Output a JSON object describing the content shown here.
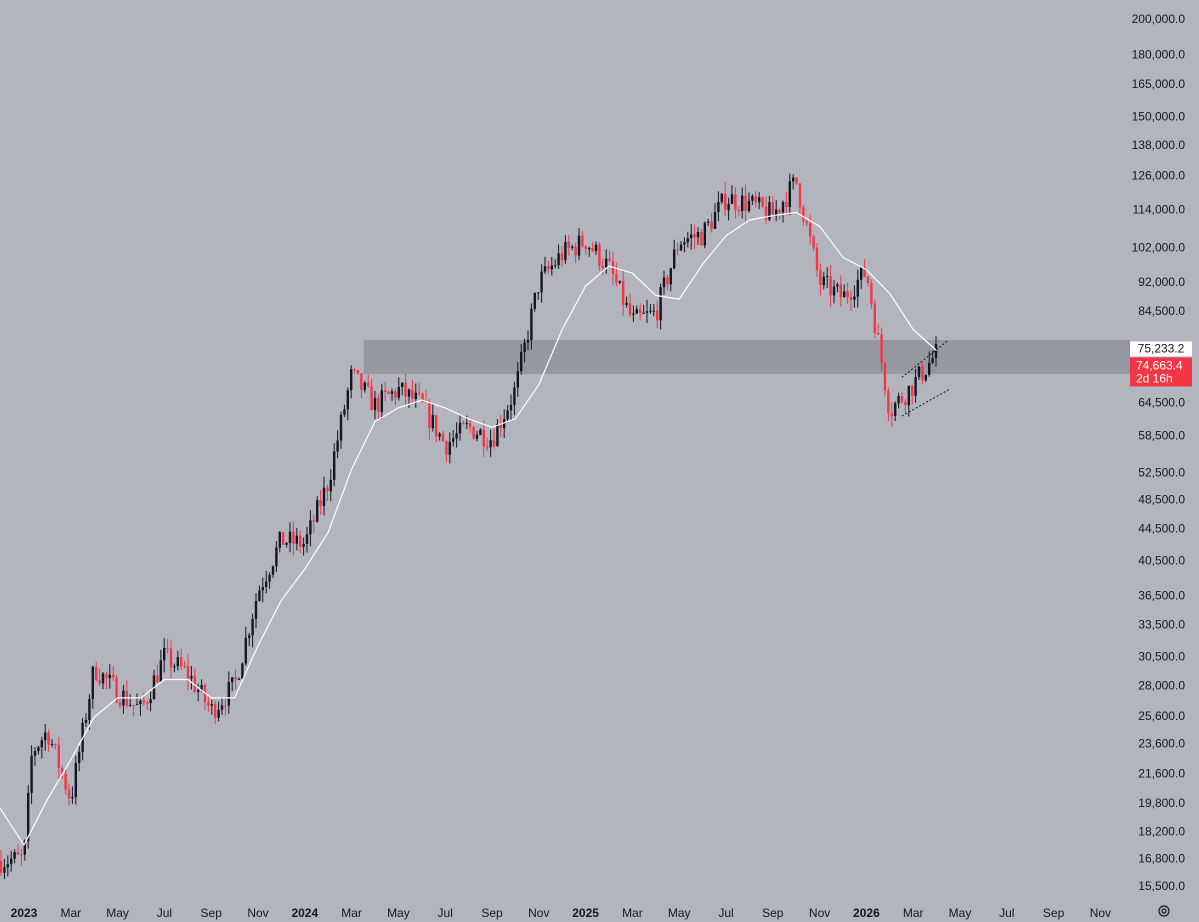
{
  "chart_data": {
    "type": "candlestick",
    "scale": "log",
    "grid": false,
    "y_ticks": [
      200000,
      180000,
      165000,
      150000,
      138000,
      126000,
      114000,
      102000,
      92000,
      84500,
      64500,
      58500,
      52500,
      48500,
      44500,
      40500,
      36500,
      33500,
      30500,
      28000,
      25600,
      23600,
      21600,
      19800,
      18200,
      16800,
      15500
    ],
    "y_tick_labels": [
      "200,000.0",
      "180,000.0",
      "165,000.0",
      "150,000.0",
      "138,000.0",
      "126,000.0",
      "114,000.0",
      "102,000.0",
      "92,000.0",
      "84,500.0",
      "64,500.0",
      "58,500.0",
      "52,500.0",
      "48,500.0",
      "44,500.0",
      "40,500.0",
      "36,500.0",
      "33,500.0",
      "30,500.0",
      "28,000.0",
      "25,600.0",
      "23,600.0",
      "21,600.0",
      "19,800.0",
      "18,200.0",
      "16,800.0",
      "15,500.0"
    ],
    "x_tick_labels": [
      {
        "label": "2023",
        "bold": true
      },
      {
        "label": "Mar",
        "bold": false
      },
      {
        "label": "May",
        "bold": false
      },
      {
        "label": "Jul",
        "bold": false
      },
      {
        "label": "Sep",
        "bold": false
      },
      {
        "label": "Nov",
        "bold": false
      },
      {
        "label": "2024",
        "bold": true
      },
      {
        "label": "Mar",
        "bold": false
      },
      {
        "label": "May",
        "bold": false
      },
      {
        "label": "Jul",
        "bold": false
      },
      {
        "label": "Sep",
        "bold": false
      },
      {
        "label": "Nov",
        "bold": false
      },
      {
        "label": "2025",
        "bold": true
      },
      {
        "label": "Mar",
        "bold": false
      },
      {
        "label": "May",
        "bold": false
      },
      {
        "label": "Jul",
        "bold": false
      },
      {
        "label": "Sep",
        "bold": false
      },
      {
        "label": "Nov",
        "bold": false
      },
      {
        "label": "2026",
        "bold": true
      },
      {
        "label": "Mar",
        "bold": false
      },
      {
        "label": "May",
        "bold": false
      },
      {
        "label": "Jul",
        "bold": false
      },
      {
        "label": "Sep",
        "bold": false
      },
      {
        "label": "Nov",
        "bold": false
      }
    ],
    "x_start": "2023-01",
    "x_end": "2026-12",
    "price_path": [
      [
        "2022-12",
        16700
      ],
      [
        "2023-01",
        16800
      ],
      [
        "2023-01",
        23000
      ],
      [
        "2023-02",
        24500
      ],
      [
        "2023-03",
        20000
      ],
      [
        "2023-04",
        29500
      ],
      [
        "2023-05",
        27500
      ],
      [
        "2023-06",
        26000
      ],
      [
        "2023-07",
        30500
      ],
      [
        "2023-08",
        29000
      ],
      [
        "2023-09",
        26000
      ],
      [
        "2023-10",
        28000
      ],
      [
        "2023-11",
        37000
      ],
      [
        "2023-12",
        43000
      ],
      [
        "2024-01",
        42500
      ],
      [
        "2024-02",
        51000
      ],
      [
        "2024-03",
        70000
      ],
      [
        "2024-04",
        64000
      ],
      [
        "2024-05",
        67000
      ],
      [
        "2024-06",
        64000
      ],
      [
        "2024-07",
        57000
      ],
      [
        "2024-08",
        60000
      ],
      [
        "2024-09",
        58000
      ],
      [
        "2024-10",
        67000
      ],
      [
        "2024-11",
        92000
      ],
      [
        "2024-12",
        100000
      ],
      [
        "2025-01",
        104000
      ],
      [
        "2025-02",
        96000
      ],
      [
        "2025-03",
        82000
      ],
      [
        "2025-04",
        84000
      ],
      [
        "2025-05",
        104000
      ],
      [
        "2025-06",
        106000
      ],
      [
        "2025-07",
        118000
      ],
      [
        "2025-08",
        116000
      ],
      [
        "2025-09",
        112000
      ],
      [
        "2025-10",
        124000
      ],
      [
        "2025-11",
        92000
      ],
      [
        "2025-12",
        88000
      ],
      [
        "2026-01",
        95000
      ],
      [
        "2026-02",
        63000
      ],
      [
        "2026-03",
        68000
      ],
      [
        "2026-04",
        74663
      ]
    ],
    "ma_path": [
      [
        "2022-12",
        19500
      ],
      [
        "2023-01",
        17500
      ],
      [
        "2023-02",
        20000
      ],
      [
        "2023-03",
        22500
      ],
      [
        "2023-04",
        25500
      ],
      [
        "2023-05",
        27000
      ],
      [
        "2023-06",
        27000
      ],
      [
        "2023-07",
        28500
      ],
      [
        "2023-08",
        28500
      ],
      [
        "2023-09",
        27000
      ],
      [
        "2023-10",
        27000
      ],
      [
        "2023-11",
        31500
      ],
      [
        "2023-12",
        36000
      ],
      [
        "2024-01",
        39500
      ],
      [
        "2024-02",
        44000
      ],
      [
        "2024-03",
        53000
      ],
      [
        "2024-04",
        61000
      ],
      [
        "2024-05",
        63500
      ],
      [
        "2024-06",
        65000
      ],
      [
        "2024-07",
        63500
      ],
      [
        "2024-08",
        61500
      ],
      [
        "2024-09",
        60000
      ],
      [
        "2024-10",
        61500
      ],
      [
        "2024-11",
        68000
      ],
      [
        "2024-12",
        80000
      ],
      [
        "2025-01",
        91000
      ],
      [
        "2025-02",
        96500
      ],
      [
        "2025-03",
        94500
      ],
      [
        "2025-04",
        88500
      ],
      [
        "2025-05",
        87500
      ],
      [
        "2025-06",
        97000
      ],
      [
        "2025-07",
        105500
      ],
      [
        "2025-08",
        110500
      ],
      [
        "2025-09",
        112000
      ],
      [
        "2025-10",
        113000
      ],
      [
        "2025-11",
        108500
      ],
      [
        "2025-12",
        99000
      ],
      [
        "2026-01",
        95500
      ],
      [
        "2026-02",
        89000
      ],
      [
        "2026-03",
        80000
      ],
      [
        "2026-04",
        75233
      ]
    ],
    "support_zone": {
      "from": "2024-03",
      "low": 70200,
      "high": 77600
    },
    "channel_upper": [
      [
        "2026-02",
        69500
      ],
      [
        "2026-04",
        77600
      ]
    ],
    "channel_lower": [
      [
        "2026-02",
        62000
      ],
      [
        "2026-04",
        67000
      ]
    ],
    "price_labels": [
      {
        "text": "75,233.2",
        "value": 75233.2,
        "bg": "#ffffff",
        "color": "#131722"
      },
      {
        "text": "74,663.4",
        "value": 74663.4,
        "bg": "#f23645",
        "color": "#ffffff"
      }
    ],
    "countdown_label": "2d 16h",
    "colors": {
      "background": "#b2b5be",
      "up_candle": "#131722",
      "down_candle": "#f23645",
      "moving_average": "#ffffff",
      "zone": "#9598a1",
      "axis_text": "#131722"
    }
  },
  "icons": {
    "settings": "gear-icon"
  }
}
